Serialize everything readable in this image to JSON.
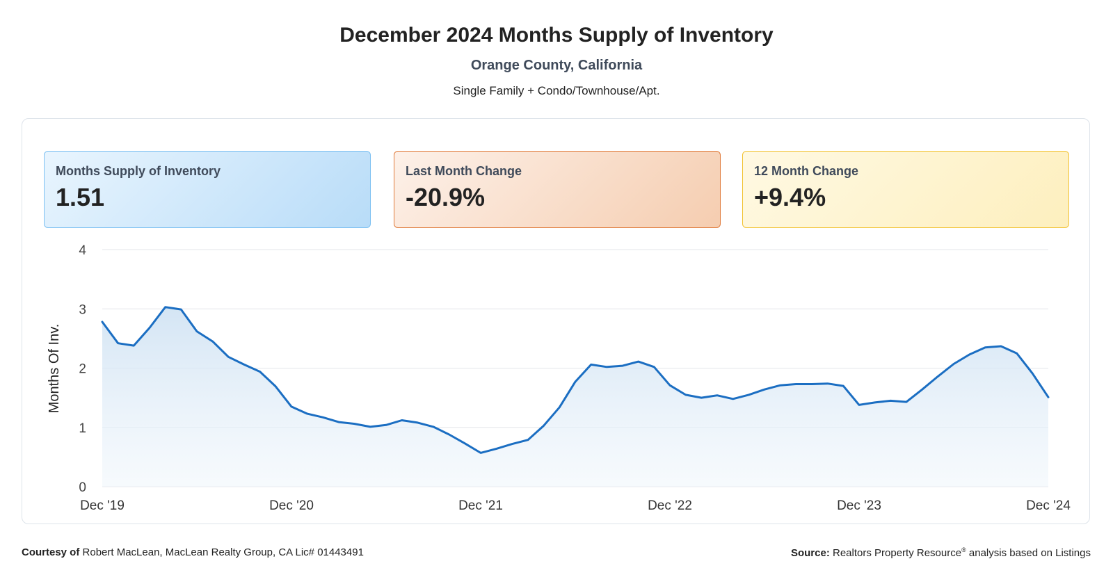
{
  "header": {
    "title": "December 2024 Months Supply of Inventory",
    "subtitle": "Orange County, California",
    "description": "Single Family + Condo/Townhouse/Apt."
  },
  "kpis": [
    {
      "label": "Months Supply of Inventory",
      "value": "1.51"
    },
    {
      "label": "Last Month Change",
      "value": "-20.9%"
    },
    {
      "label": "12 Month Change",
      "value": "+9.4%"
    }
  ],
  "footer": {
    "courtesy_label": "Courtesy of",
    "courtesy_text": "Robert MacLean, MacLean Realty Group, CA Lic# 01443491",
    "source_label": "Source:",
    "source_text_1": "Realtors Property Resource",
    "source_mark": "®",
    "source_text_2": " analysis based on Listings"
  },
  "colors": {
    "line": "#1b6ec2",
    "grid": "#e3e6ea"
  },
  "chart_data": {
    "type": "area",
    "ylabel": "Months Of Inv.",
    "ylim": [
      0,
      4
    ],
    "yticks": [
      0,
      1,
      2,
      3,
      4
    ],
    "xtick_labels": [
      "Dec '19",
      "Dec '20",
      "Dec '21",
      "Dec '22",
      "Dec '23",
      "Dec '24"
    ],
    "x": [
      "2019-12",
      "2020-01",
      "2020-02",
      "2020-03",
      "2020-04",
      "2020-05",
      "2020-06",
      "2020-07",
      "2020-08",
      "2020-09",
      "2020-10",
      "2020-11",
      "2020-12",
      "2021-01",
      "2021-02",
      "2021-03",
      "2021-04",
      "2021-05",
      "2021-06",
      "2021-07",
      "2021-08",
      "2021-09",
      "2021-10",
      "2021-11",
      "2021-12",
      "2022-01",
      "2022-02",
      "2022-03",
      "2022-04",
      "2022-05",
      "2022-06",
      "2022-07",
      "2022-08",
      "2022-09",
      "2022-10",
      "2022-11",
      "2022-12",
      "2023-01",
      "2023-02",
      "2023-03",
      "2023-04",
      "2023-05",
      "2023-06",
      "2023-07",
      "2023-08",
      "2023-09",
      "2023-10",
      "2023-11",
      "2023-12",
      "2024-01",
      "2024-02",
      "2024-03",
      "2024-04",
      "2024-05",
      "2024-06",
      "2024-07",
      "2024-08",
      "2024-09",
      "2024-10",
      "2024-11",
      "2024-12"
    ],
    "values": [
      2.78,
      2.42,
      2.38,
      2.68,
      3.03,
      2.99,
      2.62,
      2.45,
      2.19,
      2.06,
      1.94,
      1.69,
      1.35,
      1.23,
      1.17,
      1.09,
      1.06,
      1.01,
      1.04,
      1.12,
      1.08,
      1.01,
      0.88,
      0.73,
      0.57,
      0.64,
      0.72,
      0.79,
      1.03,
      1.34,
      1.77,
      2.06,
      2.02,
      2.04,
      2.11,
      2.02,
      1.71,
      1.55,
      1.5,
      1.54,
      1.48,
      1.55,
      1.64,
      1.71,
      1.73,
      1.73,
      1.74,
      1.7,
      1.38,
      1.42,
      1.45,
      1.43,
      1.64,
      1.86,
      2.07,
      2.23,
      2.35,
      2.37,
      2.25,
      1.91,
      1.51
    ]
  }
}
